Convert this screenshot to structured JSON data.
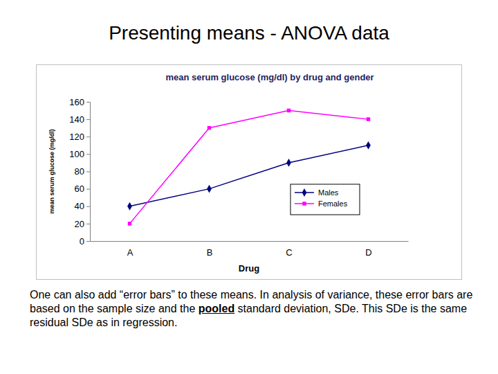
{
  "slide": {
    "title": "Presenting means - ANOVA data",
    "text": [
      "One can also add “error bars” to these means. In analysis of variance, these error bars are based on the sample size and the ",
      "pooled",
      " standard deviation, SDe. This SDe is the same residual SDe as in regression."
    ]
  },
  "chart_data": {
    "type": "line",
    "title": "mean serum glucose (mg/dl) by drug and gender",
    "x_label": "Drug",
    "y_label": "mean serum glucose (mg/dl)",
    "categories": [
      "A",
      "B",
      "C",
      "D"
    ],
    "series": [
      {
        "name": "Males",
        "color": "#000080",
        "marker": "diamond",
        "values": [
          40,
          60,
          90,
          110
        ]
      },
      {
        "name": "Females",
        "color": "#ff00ff",
        "marker": "square",
        "values": [
          20,
          130,
          150,
          140
        ]
      }
    ],
    "ylim": [
      0,
      160
    ],
    "yticks": [
      0,
      20,
      40,
      60,
      80,
      100,
      120,
      140,
      160
    ],
    "grid": false,
    "legend": "lower right"
  }
}
